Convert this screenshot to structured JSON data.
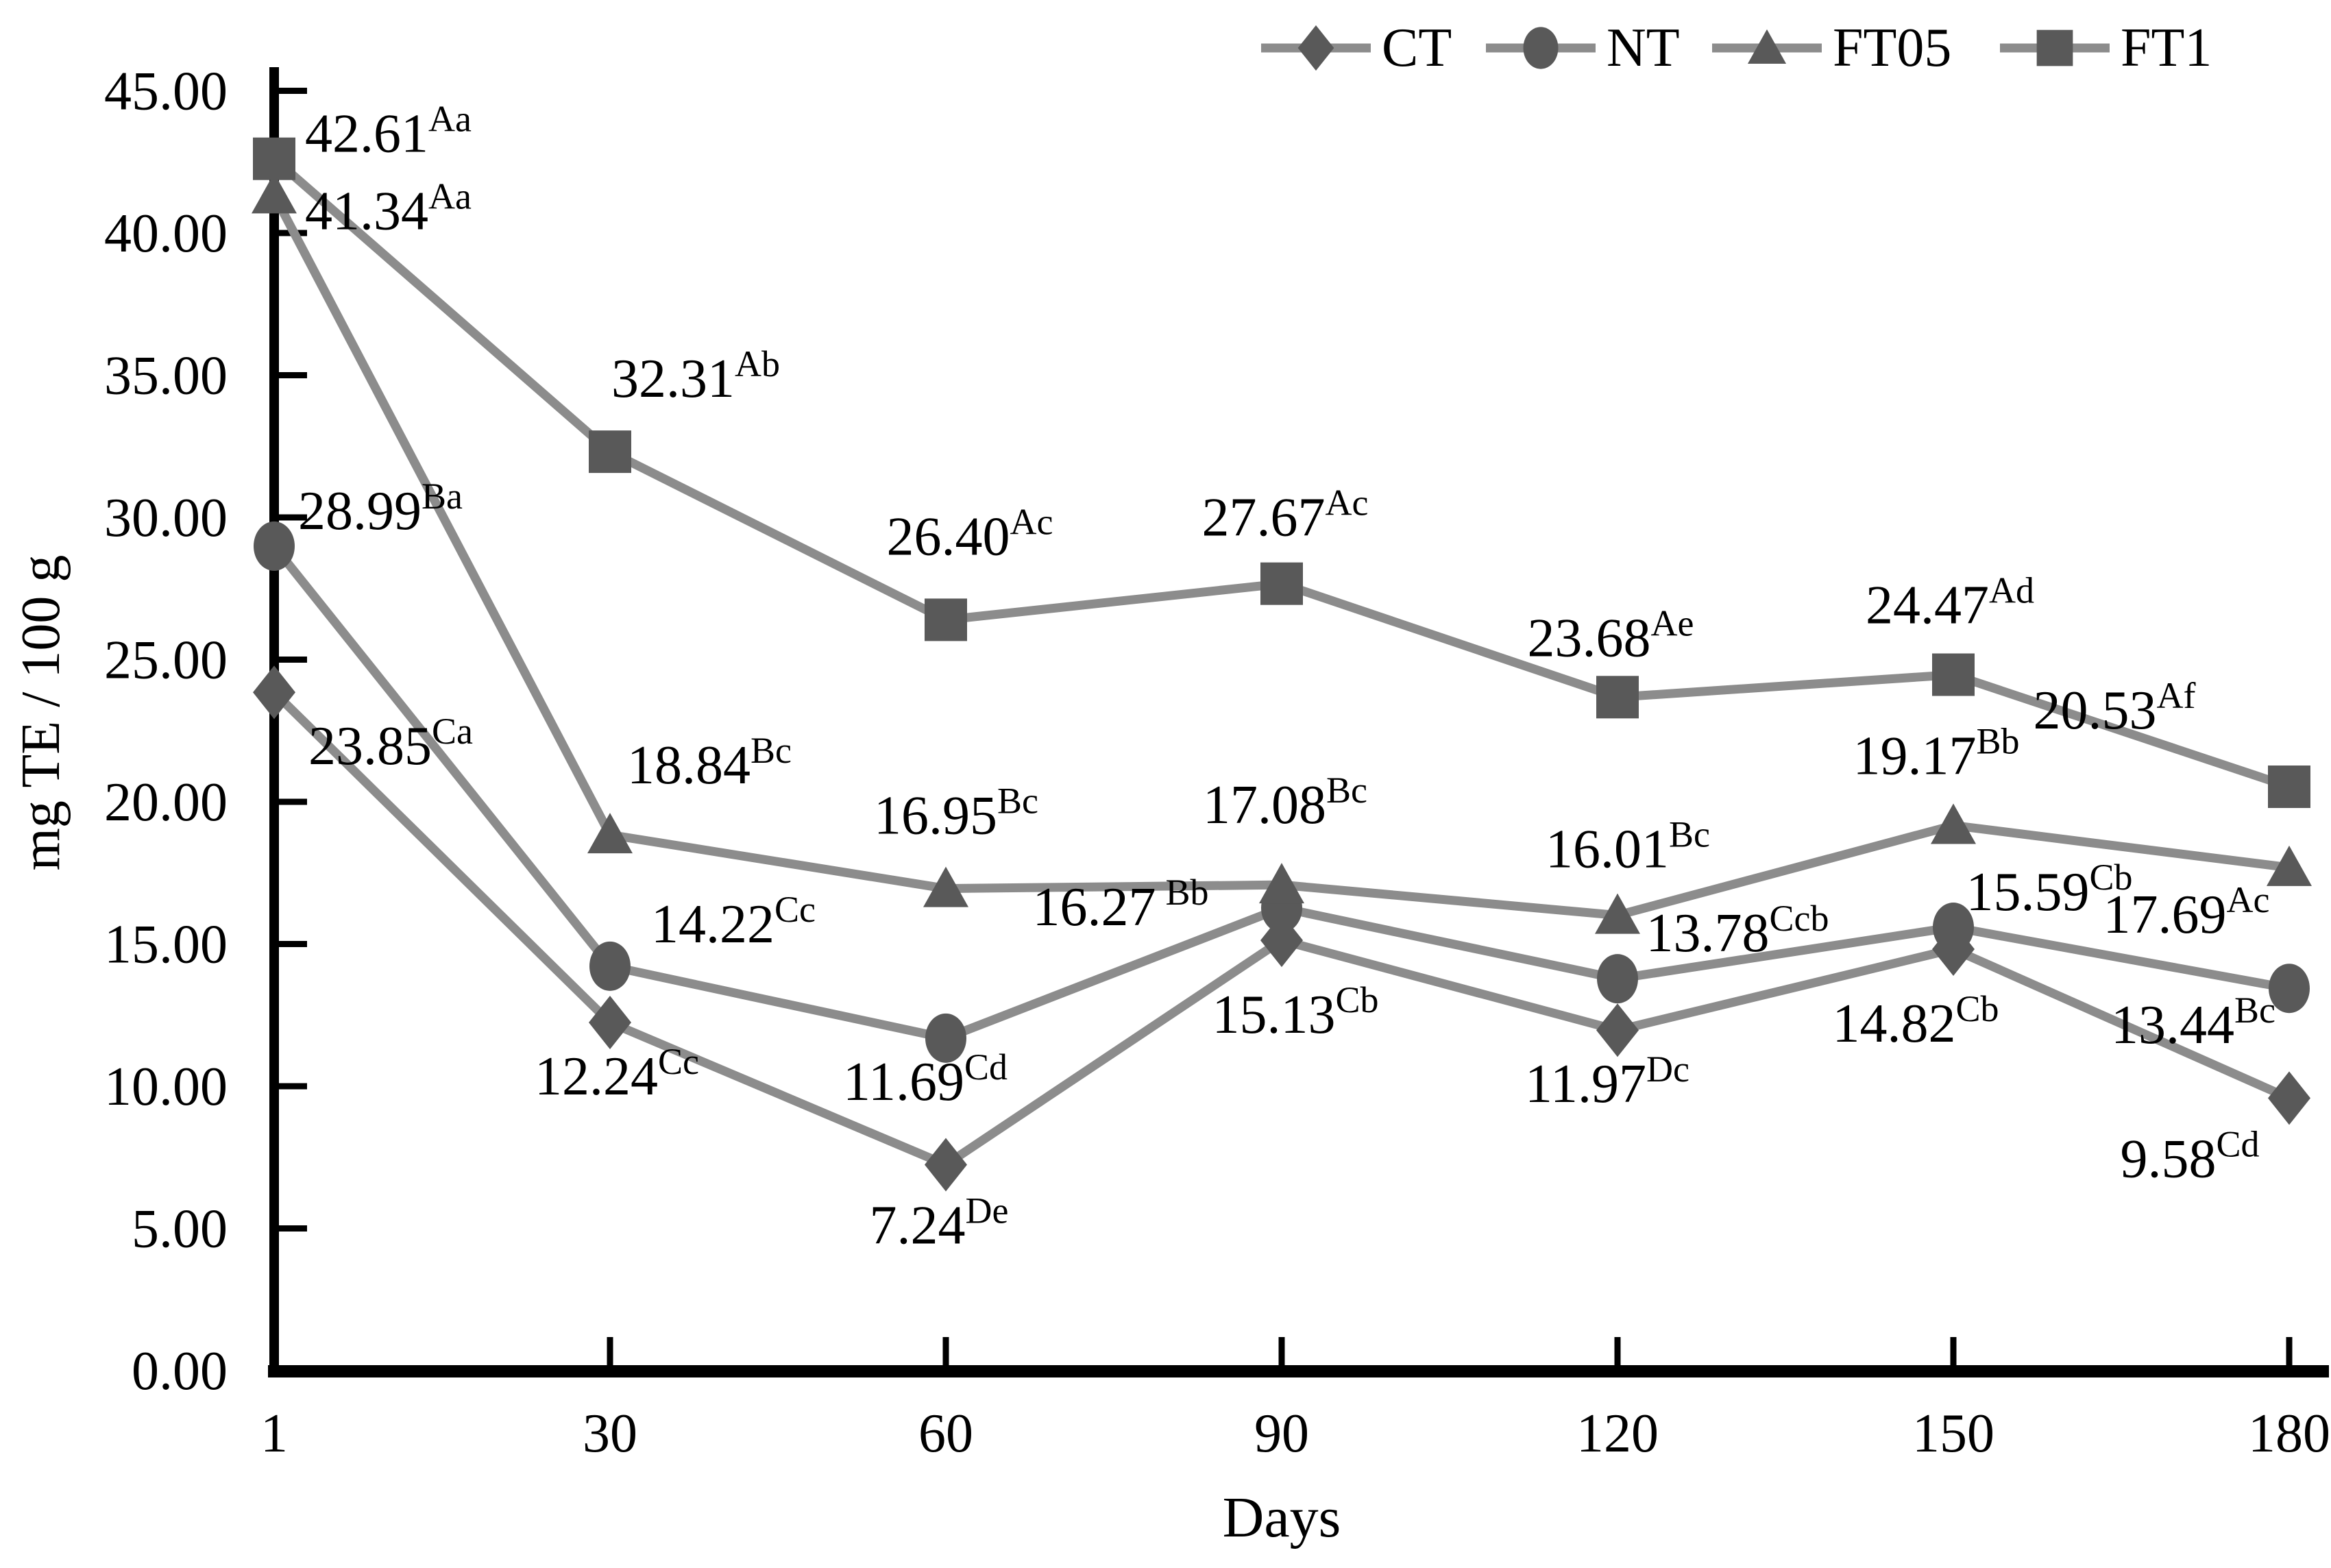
{
  "chart_data": {
    "type": "line",
    "title": "",
    "xlabel": "Days",
    "ylabel": "mg TE / 100 g",
    "x": [
      1,
      30,
      60,
      90,
      120,
      150,
      180
    ],
    "xtick_labels": [
      "1",
      "30",
      "60",
      "90",
      "120",
      "150",
      "180"
    ],
    "ylim": [
      0,
      45
    ],
    "ytick_step": 5,
    "ytick_labels": [
      "0.00",
      "5.00",
      "10.00",
      "15.00",
      "20.00",
      "25.00",
      "30.00",
      "35.00",
      "40.00",
      "45.00"
    ],
    "grid": false,
    "legend_position": "top-right",
    "legend": [
      "CT",
      "NT",
      "FT05",
      "FT1"
    ],
    "series": [
      {
        "name": "CT",
        "marker": "diamond",
        "values": [
          23.85,
          12.24,
          7.24,
          15.13,
          11.97,
          14.82,
          9.58
        ],
        "labels": [
          {
            "v": "23.85",
            "sup": "Ca",
            "dx": 50,
            "dy": 105,
            "anchor": "start"
          },
          {
            "v": "12.24",
            "sup": "Cc",
            "dx": 10,
            "dy": 105,
            "anchor": "middle"
          },
          {
            "v": "7.24",
            "sup": "De",
            "dx": -10,
            "dy": 115,
            "anchor": "middle"
          },
          {
            "v": "15.13",
            "sup": "Cb",
            "dx": 20,
            "dy": 135,
            "anchor": "middle"
          },
          {
            "v": "11.97",
            "sup": "Dc",
            "dx": -15,
            "dy": 105,
            "anchor": "middle"
          },
          {
            "v": "14.82",
            "sup": "Cb",
            "dx": -55,
            "dy": 135,
            "anchor": "middle"
          },
          {
            "v": "9.58",
            "sup": "Cd",
            "dx": -145,
            "dy": 115,
            "anchor": "middle"
          }
        ]
      },
      {
        "name": "NT",
        "marker": "circle",
        "values": [
          28.99,
          14.22,
          11.69,
          16.27,
          13.78,
          15.59,
          13.44
        ],
        "labels": [
          {
            "v": "28.99",
            "sup": "Ba",
            "dx": 35,
            "dy": -25,
            "anchor": "start"
          },
          {
            "v": "14.22",
            "sup": "Cc",
            "dx": 180,
            "dy": -35,
            "anchor": "middle"
          },
          {
            "v": "11.69",
            "sup": "Cd",
            "dx": -30,
            "dy": 90,
            "anchor": "middle"
          },
          {
            "v": "16.27",
            "sup": "Bb",
            "dx": -235,
            "dy": 25,
            "anchor": "middle",
            "gap": 14
          },
          {
            "v": "13.78",
            "sup": "Ccb",
            "dx": 175,
            "dy": -40,
            "anchor": "middle"
          },
          {
            "v": "15.59",
            "sup": "Cb",
            "dx": 140,
            "dy": -25,
            "anchor": "middle"
          },
          {
            "v": "13.44",
            "sup": "Bc",
            "dx": -140,
            "dy": 80,
            "anchor": "middle"
          }
        ]
      },
      {
        "name": "FT05",
        "marker": "triangle",
        "values": [
          41.34,
          18.84,
          16.95,
          17.08,
          16.01,
          19.17,
          17.69
        ],
        "labels": [
          {
            "v": "41.34",
            "sup": "Aa",
            "dx": 45,
            "dy": 50,
            "anchor": "start"
          },
          {
            "v": "18.84",
            "sup": "Bc",
            "dx": 145,
            "dy": -75,
            "anchor": "middle"
          },
          {
            "v": "16.95",
            "sup": "Bc",
            "dx": 15,
            "dy": -80,
            "anchor": "middle"
          },
          {
            "v": "17.08",
            "sup": "Bc",
            "dx": 5,
            "dy": -90,
            "anchor": "middle"
          },
          {
            "v": "16.01",
            "sup": "Bc",
            "dx": 15,
            "dy": -70,
            "anchor": "middle"
          },
          {
            "v": "19.17",
            "sup": "Bb",
            "dx": -25,
            "dy": -75,
            "anchor": "middle"
          },
          {
            "v": "17.69",
            "sup": "Ac",
            "dx": -150,
            "dy": 95,
            "anchor": "middle"
          }
        ]
      },
      {
        "name": "FT1",
        "marker": "square",
        "values": [
          42.61,
          32.31,
          26.4,
          27.67,
          23.68,
          24.47,
          20.53
        ],
        "labels": [
          {
            "v": "42.61",
            "sup": "Aa",
            "dx": 45,
            "dy": -10,
            "anchor": "start"
          },
          {
            "v": "32.31",
            "sup": "Ab",
            "dx": 125,
            "dy": -80,
            "anchor": "middle"
          },
          {
            "v": "26.40",
            "sup": "Ac",
            "dx": 35,
            "dy": -95,
            "anchor": "middle"
          },
          {
            "v": "27.67",
            "sup": "Ac",
            "dx": 5,
            "dy": -70,
            "anchor": "middle"
          },
          {
            "v": "23.68",
            "sup": "Ae",
            "dx": -10,
            "dy": -60,
            "anchor": "middle"
          },
          {
            "v": "24.47",
            "sup": "Ad",
            "dx": -5,
            "dy": -75,
            "anchor": "middle"
          },
          {
            "v": "20.53",
            "sup": "Af",
            "dx": -255,
            "dy": -85,
            "anchor": "middle"
          }
        ]
      }
    ]
  },
  "style": {
    "line_color": "#8c8c8c",
    "marker_color": "#595959",
    "axis_color": "#000000",
    "text_color": "#000000",
    "background": "#ffffff"
  }
}
